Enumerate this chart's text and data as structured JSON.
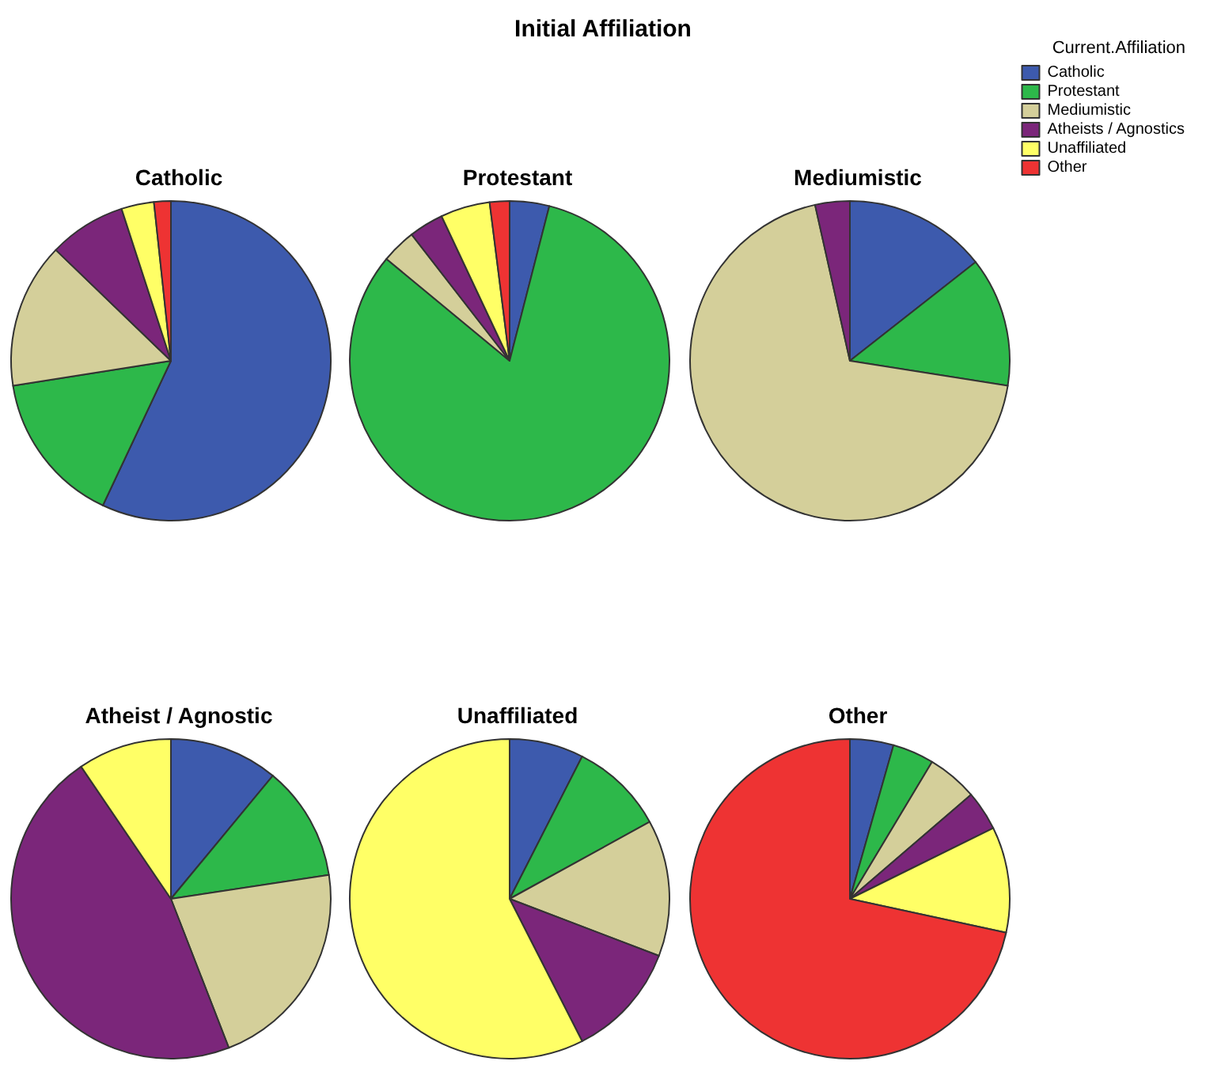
{
  "chart_data": {
    "type": "pie",
    "title": "Initial Affiliation",
    "legend": "top right",
    "legend_title": "Current.Affiliation",
    "categories": [
      "Catholic",
      "Protestant",
      "Mediumistic",
      "Atheists / Agnostics",
      "Unaffiliated",
      "Other"
    ],
    "colors": [
      "#3d5aad",
      "#2db84a",
      "#d4cf9a",
      "#7b267a",
      "#ffff66",
      "#ee3333"
    ],
    "series": [
      {
        "name": "Catholic",
        "values": [
          57,
          15.5,
          14.7,
          7.8,
          3.3,
          1.7
        ]
      },
      {
        "name": "Protestant",
        "values": [
          4,
          82,
          3.5,
          3.5,
          5,
          2
        ]
      },
      {
        "name": "Mediumistic",
        "values": [
          14.4,
          13.1,
          69,
          3.5,
          null,
          null
        ]
      },
      {
        "name": "Atheist / Agnostic",
        "values": [
          11,
          11.6,
          21.5,
          46.4,
          9.5,
          null
        ]
      },
      {
        "name": "Unaffiliated",
        "values": [
          7.5,
          9.5,
          13.8,
          11.7,
          57.5,
          null
        ]
      },
      {
        "name": "Other",
        "values": [
          4.4,
          4.2,
          5.1,
          4,
          10.7,
          71.6
        ]
      }
    ]
  }
}
